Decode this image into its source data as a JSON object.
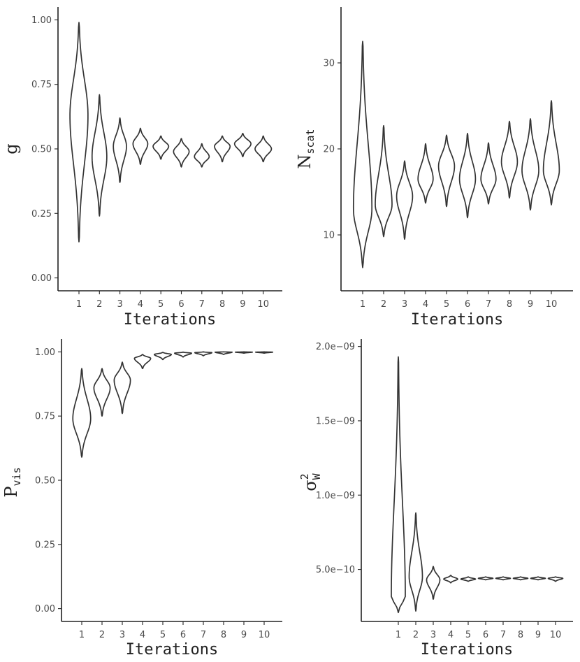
{
  "chart_data": [
    {
      "type": "violin",
      "ylabel": "g",
      "xlabel": "Iterations",
      "ylim": [
        -0.05,
        1.05
      ],
      "yticks": [
        0,
        0.25,
        0.5,
        0.75,
        1.0
      ],
      "ytick_labels": [
        "0.00",
        "0.25",
        "0.50",
        "0.75",
        "1.00"
      ],
      "x_labels": [
        "1",
        "2",
        "3",
        "4",
        "5",
        "6",
        "7",
        "8",
        "9",
        "10"
      ],
      "violins": [
        {
          "min": 0.14,
          "max": 0.99,
          "mode": 0.63,
          "width": 0.44
        },
        {
          "min": 0.24,
          "max": 0.71,
          "mode": 0.47,
          "width": 0.36
        },
        {
          "min": 0.37,
          "max": 0.62,
          "mode": 0.51,
          "width": 0.32
        },
        {
          "min": 0.44,
          "max": 0.58,
          "mode": 0.52,
          "width": 0.36
        },
        {
          "min": 0.46,
          "max": 0.55,
          "mode": 0.51,
          "width": 0.38
        },
        {
          "min": 0.43,
          "max": 0.54,
          "mode": 0.49,
          "width": 0.38
        },
        {
          "min": 0.43,
          "max": 0.52,
          "mode": 0.47,
          "width": 0.36
        },
        {
          "min": 0.45,
          "max": 0.55,
          "mode": 0.51,
          "width": 0.38
        },
        {
          "min": 0.47,
          "max": 0.56,
          "mode": 0.52,
          "width": 0.4
        },
        {
          "min": 0.45,
          "max": 0.55,
          "mode": 0.5,
          "width": 0.4
        }
      ]
    },
    {
      "type": "violin",
      "ylabel": "N",
      "ylabel_sub": "scat",
      "xlabel": "Iterations",
      "ylim": [
        3.5,
        36.5
      ],
      "yticks": [
        10,
        20,
        30
      ],
      "ytick_labels": [
        "10",
        "20",
        "30"
      ],
      "x_labels": [
        "1",
        "2",
        "3",
        "4",
        "5",
        "6",
        "7",
        "8",
        "9",
        "10"
      ],
      "violins": [
        {
          "min": 6.2,
          "max": 32.5,
          "mode": 13.0,
          "width": 0.44
        },
        {
          "min": 9.8,
          "max": 22.7,
          "mode": 13.5,
          "width": 0.4
        },
        {
          "min": 9.5,
          "max": 18.6,
          "mode": 14.5,
          "width": 0.38
        },
        {
          "min": 13.7,
          "max": 20.6,
          "mode": 16.5,
          "width": 0.36
        },
        {
          "min": 13.3,
          "max": 21.6,
          "mode": 18.0,
          "width": 0.38
        },
        {
          "min": 12.0,
          "max": 21.8,
          "mode": 16.5,
          "width": 0.38
        },
        {
          "min": 13.6,
          "max": 20.7,
          "mode": 16.5,
          "width": 0.36
        },
        {
          "min": 14.3,
          "max": 23.2,
          "mode": 18.5,
          "width": 0.38
        },
        {
          "min": 12.9,
          "max": 23.5,
          "mode": 17.5,
          "width": 0.4
        },
        {
          "min": 13.5,
          "max": 25.6,
          "mode": 17.5,
          "width": 0.38
        }
      ]
    },
    {
      "type": "violin",
      "ylabel": "P",
      "ylabel_sub": "vis",
      "xlabel": "Iterations",
      "ylim": [
        -0.05,
        1.05
      ],
      "yticks": [
        0,
        0.25,
        0.5,
        0.75,
        1.0
      ],
      "ytick_labels": [
        "0.00",
        "0.25",
        "0.50",
        "0.75",
        "1.00"
      ],
      "x_labels": [
        "1",
        "2",
        "3",
        "4",
        "5",
        "6",
        "7",
        "8",
        "9",
        "10"
      ],
      "violins": [
        {
          "min": 0.59,
          "max": 0.935,
          "mode": 0.74,
          "width": 0.44
        },
        {
          "min": 0.75,
          "max": 0.935,
          "mode": 0.86,
          "width": 0.4
        },
        {
          "min": 0.76,
          "max": 0.96,
          "mode": 0.89,
          "width": 0.4
        },
        {
          "min": 0.935,
          "max": 0.99,
          "mode": 0.975,
          "width": 0.4
        },
        {
          "min": 0.97,
          "max": 0.998,
          "mode": 0.99,
          "width": 0.42
        },
        {
          "min": 0.98,
          "max": 0.999,
          "mode": 0.995,
          "width": 0.42
        },
        {
          "min": 0.985,
          "max": 1.0,
          "mode": 0.997,
          "width": 0.42
        },
        {
          "min": 0.99,
          "max": 1.0,
          "mode": 0.999,
          "width": 0.42
        },
        {
          "min": 0.995,
          "max": 1.0,
          "mode": 0.999,
          "width": 0.42
        },
        {
          "min": 0.995,
          "max": 1.0,
          "mode": 0.999,
          "width": 0.42
        }
      ]
    },
    {
      "type": "violin",
      "ylabel": "σ",
      "ylabel_sup": "2",
      "ylabel_sub": "W",
      "xlabel": "Iterations",
      "ylim": [
        1.5e-10,
        2.05e-09
      ],
      "yticks": [
        5e-10,
        1e-09,
        1.5e-09,
        2e-09
      ],
      "ytick_labels": [
        "5.0e−10",
        "1.0e−09",
        "1.5e−09",
        "2.0e−09"
      ],
      "x_labels": [
        "1",
        "2",
        "3",
        "4",
        "5",
        "6",
        "7",
        "8",
        "9",
        "10"
      ],
      "violins": [
        {
          "min": 2.1e-10,
          "max": 1.93e-09,
          "mode": 3.2e-10,
          "width": 0.4
        },
        {
          "min": 2.2e-10,
          "max": 8.8e-10,
          "mode": 4.5e-10,
          "width": 0.38
        },
        {
          "min": 3e-10,
          "max": 5.2e-10,
          "mode": 4.3e-10,
          "width": 0.38
        },
        {
          "min": 4.1e-10,
          "max": 4.6e-10,
          "mode": 4.35e-10,
          "width": 0.4
        },
        {
          "min": 4.2e-10,
          "max": 4.5e-10,
          "mode": 4.35e-10,
          "width": 0.42
        },
        {
          "min": 4.3e-10,
          "max": 4.5e-10,
          "mode": 4.4e-10,
          "width": 0.42
        },
        {
          "min": 4.3e-10,
          "max": 4.5e-10,
          "mode": 4.4e-10,
          "width": 0.42
        },
        {
          "min": 4.3e-10,
          "max": 4.5e-10,
          "mode": 4.4e-10,
          "width": 0.42
        },
        {
          "min": 4.3e-10,
          "max": 4.5e-10,
          "mode": 4.4e-10,
          "width": 0.42
        },
        {
          "min": 4.2e-10,
          "max": 4.5e-10,
          "mode": 4.4e-10,
          "width": 0.42
        }
      ]
    }
  ]
}
